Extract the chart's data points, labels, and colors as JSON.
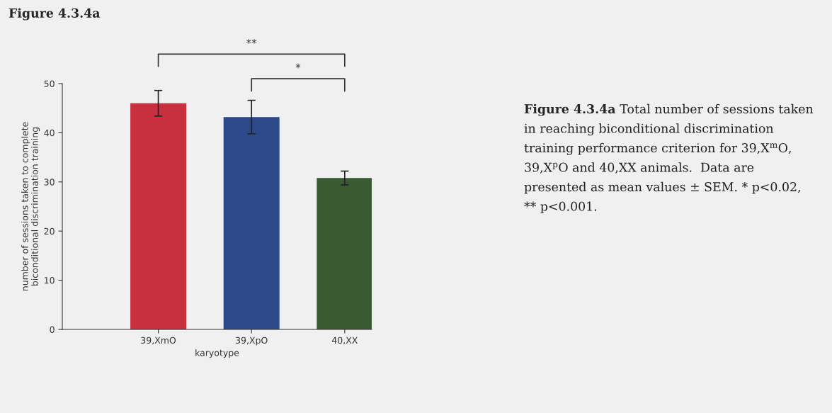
{
  "chart_data": {
    "type": "bar",
    "title": "Figure 4.3.4a",
    "categories": [
      "39,XmO",
      "39,XpO",
      "40,XX"
    ],
    "values": [
      46.0,
      43.2,
      30.8
    ],
    "errors": [
      2.6,
      3.4,
      1.4
    ],
    "colors": [
      "#c8303f",
      "#2c4a8a",
      "#3a5a34"
    ],
    "xlabel": "karyotype",
    "ylabel": "number of sessions taken to complete\nbiconditional discrimination training",
    "ylim": [
      0,
      50
    ],
    "yticks": [
      0,
      10,
      20,
      30,
      40,
      50
    ],
    "grid": false,
    "legend": false,
    "annotations": [
      "**",
      "*",
      "Figure 4.3.4a",
      "Total number of sessions taken in reaching biconditional discrimination training performance criterion for 39,X$^{m}$O, 39,X$^{p}$O and 40,XX animals.  Data are presented as mean values ± SEM. * p<0.02, ** p<0.001."
    ]
  }
}
